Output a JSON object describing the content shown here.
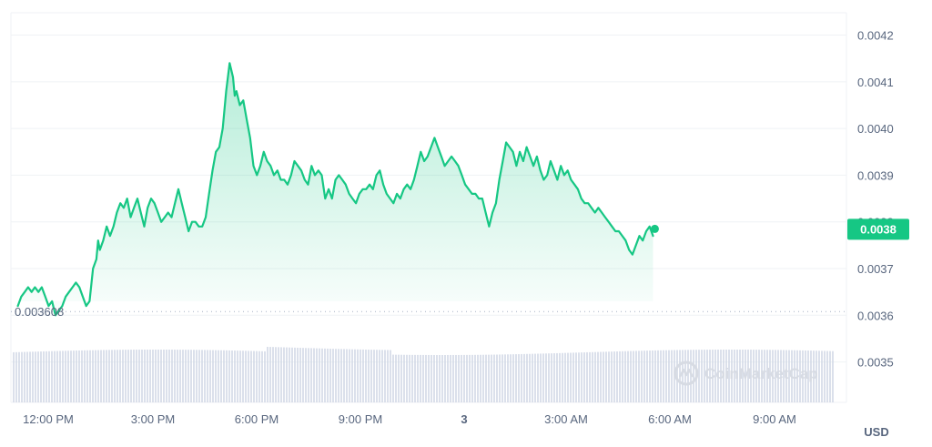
{
  "chart_data": {
    "type": "area",
    "watermark": "CoinMarketCap",
    "unit_label": "USD",
    "baseline_label": "0.003608",
    "baseline_value": 0.003608,
    "current_price_label": "0.0038",
    "current_price": 0.003785,
    "y_ticks": [
      "0.0042",
      "0.0041",
      "0.0040",
      "0.0039",
      "0.0038",
      "0.0037",
      "0.0036",
      "0.0035"
    ],
    "ylim": [
      0.00347,
      0.00424
    ],
    "x_ticks": [
      {
        "label": "12:00 PM",
        "t": 12,
        "bold": false
      },
      {
        "label": "3:00 PM",
        "t": 15,
        "bold": false
      },
      {
        "label": "6:00 PM",
        "t": 18,
        "bold": false
      },
      {
        "label": "9:00 PM",
        "t": 21,
        "bold": false
      },
      {
        "label": "3",
        "t": 24,
        "bold": true
      },
      {
        "label": "3:00 AM",
        "t": 27,
        "bold": false
      },
      {
        "label": "6:00 AM",
        "t": 30,
        "bold": false
      },
      {
        "label": "9:00 AM",
        "t": 33,
        "bold": false
      }
    ],
    "xlim": [
      11.6,
      35.6
    ],
    "colors": {
      "line": "#16c784",
      "badge": "#16c784",
      "volume": "#cfd6e4",
      "grid": "#eff2f5"
    },
    "series": [
      {
        "values": [
          [
            11.8,
            0.00362
          ],
          [
            11.9,
            0.00364
          ],
          [
            12.0,
            0.00365
          ],
          [
            12.1,
            0.00366
          ],
          [
            12.2,
            0.00365
          ],
          [
            12.3,
            0.00366
          ],
          [
            12.4,
            0.00365
          ],
          [
            12.5,
            0.00366
          ],
          [
            12.6,
            0.00364
          ],
          [
            12.7,
            0.00362
          ],
          [
            12.8,
            0.00363
          ],
          [
            12.9,
            0.0036
          ],
          [
            13.0,
            0.00361
          ],
          [
            13.1,
            0.00362
          ],
          [
            13.2,
            0.00364
          ],
          [
            13.3,
            0.00365
          ],
          [
            13.4,
            0.00366
          ],
          [
            13.5,
            0.00367
          ],
          [
            13.6,
            0.00366
          ],
          [
            13.7,
            0.00364
          ],
          [
            13.8,
            0.00362
          ],
          [
            13.9,
            0.00363
          ],
          [
            14.0,
            0.0037
          ],
          [
            14.1,
            0.00372
          ],
          [
            14.15,
            0.00376
          ],
          [
            14.2,
            0.00374
          ],
          [
            14.3,
            0.00376
          ],
          [
            14.4,
            0.00379
          ],
          [
            14.5,
            0.00377
          ],
          [
            14.6,
            0.00379
          ],
          [
            14.7,
            0.00382
          ],
          [
            14.8,
            0.00384
          ],
          [
            14.9,
            0.00383
          ],
          [
            15.0,
            0.00385
          ],
          [
            15.1,
            0.00381
          ],
          [
            15.2,
            0.00383
          ],
          [
            15.3,
            0.00385
          ],
          [
            15.4,
            0.00382
          ],
          [
            15.5,
            0.00379
          ],
          [
            15.6,
            0.00383
          ],
          [
            15.7,
            0.00385
          ],
          [
            15.8,
            0.00384
          ],
          [
            15.9,
            0.00382
          ],
          [
            16.0,
            0.0038
          ],
          [
            16.1,
            0.00381
          ],
          [
            16.2,
            0.00382
          ],
          [
            16.3,
            0.00381
          ],
          [
            16.4,
            0.00384
          ],
          [
            16.5,
            0.00387
          ],
          [
            16.6,
            0.00384
          ],
          [
            16.7,
            0.00381
          ],
          [
            16.8,
            0.00378
          ],
          [
            16.9,
            0.0038
          ],
          [
            17.0,
            0.0038
          ],
          [
            17.1,
            0.00379
          ],
          [
            17.2,
            0.00379
          ],
          [
            17.3,
            0.00381
          ],
          [
            17.4,
            0.00386
          ],
          [
            17.5,
            0.00391
          ],
          [
            17.6,
            0.00395
          ],
          [
            17.7,
            0.00396
          ],
          [
            17.8,
            0.004
          ],
          [
            17.9,
            0.00408
          ],
          [
            18.0,
            0.00414
          ],
          [
            18.1,
            0.00411
          ],
          [
            18.15,
            0.00407
          ],
          [
            18.2,
            0.00408
          ],
          [
            18.3,
            0.00405
          ],
          [
            18.4,
            0.00406
          ],
          [
            18.5,
            0.00402
          ],
          [
            18.6,
            0.00398
          ],
          [
            18.7,
            0.00392
          ],
          [
            18.8,
            0.0039
          ],
          [
            18.9,
            0.00392
          ],
          [
            19.0,
            0.00395
          ],
          [
            19.1,
            0.00393
          ],
          [
            19.2,
            0.00392
          ],
          [
            19.3,
            0.0039
          ],
          [
            19.4,
            0.00391
          ],
          [
            19.5,
            0.00389
          ],
          [
            19.6,
            0.00389
          ],
          [
            19.7,
            0.00388
          ],
          [
            19.8,
            0.0039
          ],
          [
            19.9,
            0.00393
          ],
          [
            20.0,
            0.00392
          ],
          [
            20.1,
            0.00391
          ],
          [
            20.2,
            0.00389
          ],
          [
            20.3,
            0.00388
          ],
          [
            20.4,
            0.00392
          ],
          [
            20.5,
            0.0039
          ],
          [
            20.6,
            0.00391
          ],
          [
            20.7,
            0.0039
          ],
          [
            20.8,
            0.00385
          ],
          [
            20.9,
            0.00387
          ],
          [
            21.0,
            0.00385
          ],
          [
            21.1,
            0.00389
          ],
          [
            21.2,
            0.0039
          ],
          [
            21.3,
            0.00389
          ],
          [
            21.4,
            0.00388
          ],
          [
            21.5,
            0.00386
          ],
          [
            21.6,
            0.00385
          ],
          [
            21.7,
            0.00384
          ],
          [
            21.8,
            0.00386
          ],
          [
            21.9,
            0.00387
          ],
          [
            22.0,
            0.00387
          ],
          [
            22.1,
            0.00388
          ],
          [
            22.2,
            0.00387
          ],
          [
            22.3,
            0.0039
          ],
          [
            22.4,
            0.00391
          ],
          [
            22.5,
            0.00388
          ],
          [
            22.6,
            0.00386
          ],
          [
            22.7,
            0.00385
          ],
          [
            22.8,
            0.00384
          ],
          [
            22.9,
            0.00386
          ],
          [
            23.0,
            0.00385
          ],
          [
            23.1,
            0.00387
          ],
          [
            23.2,
            0.00388
          ],
          [
            23.3,
            0.00387
          ],
          [
            23.4,
            0.00389
          ],
          [
            23.5,
            0.00392
          ],
          [
            23.6,
            0.00395
          ],
          [
            23.7,
            0.00393
          ],
          [
            23.8,
            0.00394
          ],
          [
            23.9,
            0.00396
          ],
          [
            24.0,
            0.00398
          ],
          [
            24.1,
            0.00396
          ],
          [
            24.2,
            0.00394
          ],
          [
            24.3,
            0.00392
          ],
          [
            24.4,
            0.00393
          ],
          [
            24.5,
            0.00394
          ],
          [
            24.6,
            0.00393
          ],
          [
            24.7,
            0.00392
          ],
          [
            24.8,
            0.0039
          ],
          [
            24.9,
            0.00388
          ],
          [
            25.0,
            0.00387
          ],
          [
            25.1,
            0.00386
          ],
          [
            25.2,
            0.00386
          ],
          [
            25.3,
            0.00385
          ],
          [
            25.4,
            0.00385
          ],
          [
            25.5,
            0.00382
          ],
          [
            25.6,
            0.00379
          ],
          [
            25.7,
            0.00382
          ],
          [
            25.8,
            0.00384
          ],
          [
            25.9,
            0.00389
          ],
          [
            26.0,
            0.00393
          ],
          [
            26.1,
            0.00397
          ],
          [
            26.2,
            0.00396
          ],
          [
            26.3,
            0.00395
          ],
          [
            26.4,
            0.00392
          ],
          [
            26.5,
            0.00395
          ],
          [
            26.6,
            0.00393
          ],
          [
            26.7,
            0.00396
          ],
          [
            26.8,
            0.00394
          ],
          [
            26.9,
            0.00392
          ],
          [
            27.0,
            0.00394
          ],
          [
            27.1,
            0.00391
          ],
          [
            27.2,
            0.00389
          ],
          [
            27.3,
            0.0039
          ],
          [
            27.4,
            0.00393
          ],
          [
            27.5,
            0.00391
          ],
          [
            27.6,
            0.00389
          ],
          [
            27.7,
            0.00392
          ],
          [
            27.8,
            0.0039
          ],
          [
            27.9,
            0.00391
          ],
          [
            28.0,
            0.00389
          ],
          [
            28.1,
            0.00388
          ],
          [
            28.2,
            0.00387
          ],
          [
            28.3,
            0.00385
          ],
          [
            28.4,
            0.00384
          ],
          [
            28.5,
            0.00384
          ],
          [
            28.6,
            0.00383
          ],
          [
            28.7,
            0.00382
          ],
          [
            28.8,
            0.00383
          ],
          [
            28.9,
            0.00382
          ],
          [
            29.0,
            0.00381
          ],
          [
            29.1,
            0.0038
          ],
          [
            29.2,
            0.00379
          ],
          [
            29.3,
            0.00378
          ],
          [
            29.4,
            0.00378
          ],
          [
            29.5,
            0.00377
          ],
          [
            29.6,
            0.00376
          ],
          [
            29.7,
            0.00374
          ],
          [
            29.8,
            0.00373
          ],
          [
            29.9,
            0.00375
          ],
          [
            30.0,
            0.00377
          ],
          [
            30.1,
            0.00376
          ],
          [
            30.2,
            0.00378
          ],
          [
            30.3,
            0.00379
          ],
          [
            30.4,
            0.00377
          ]
        ]
      }
    ],
    "time_scale": 0.4537,
    "volume": "decorative bars, roughly flat"
  }
}
